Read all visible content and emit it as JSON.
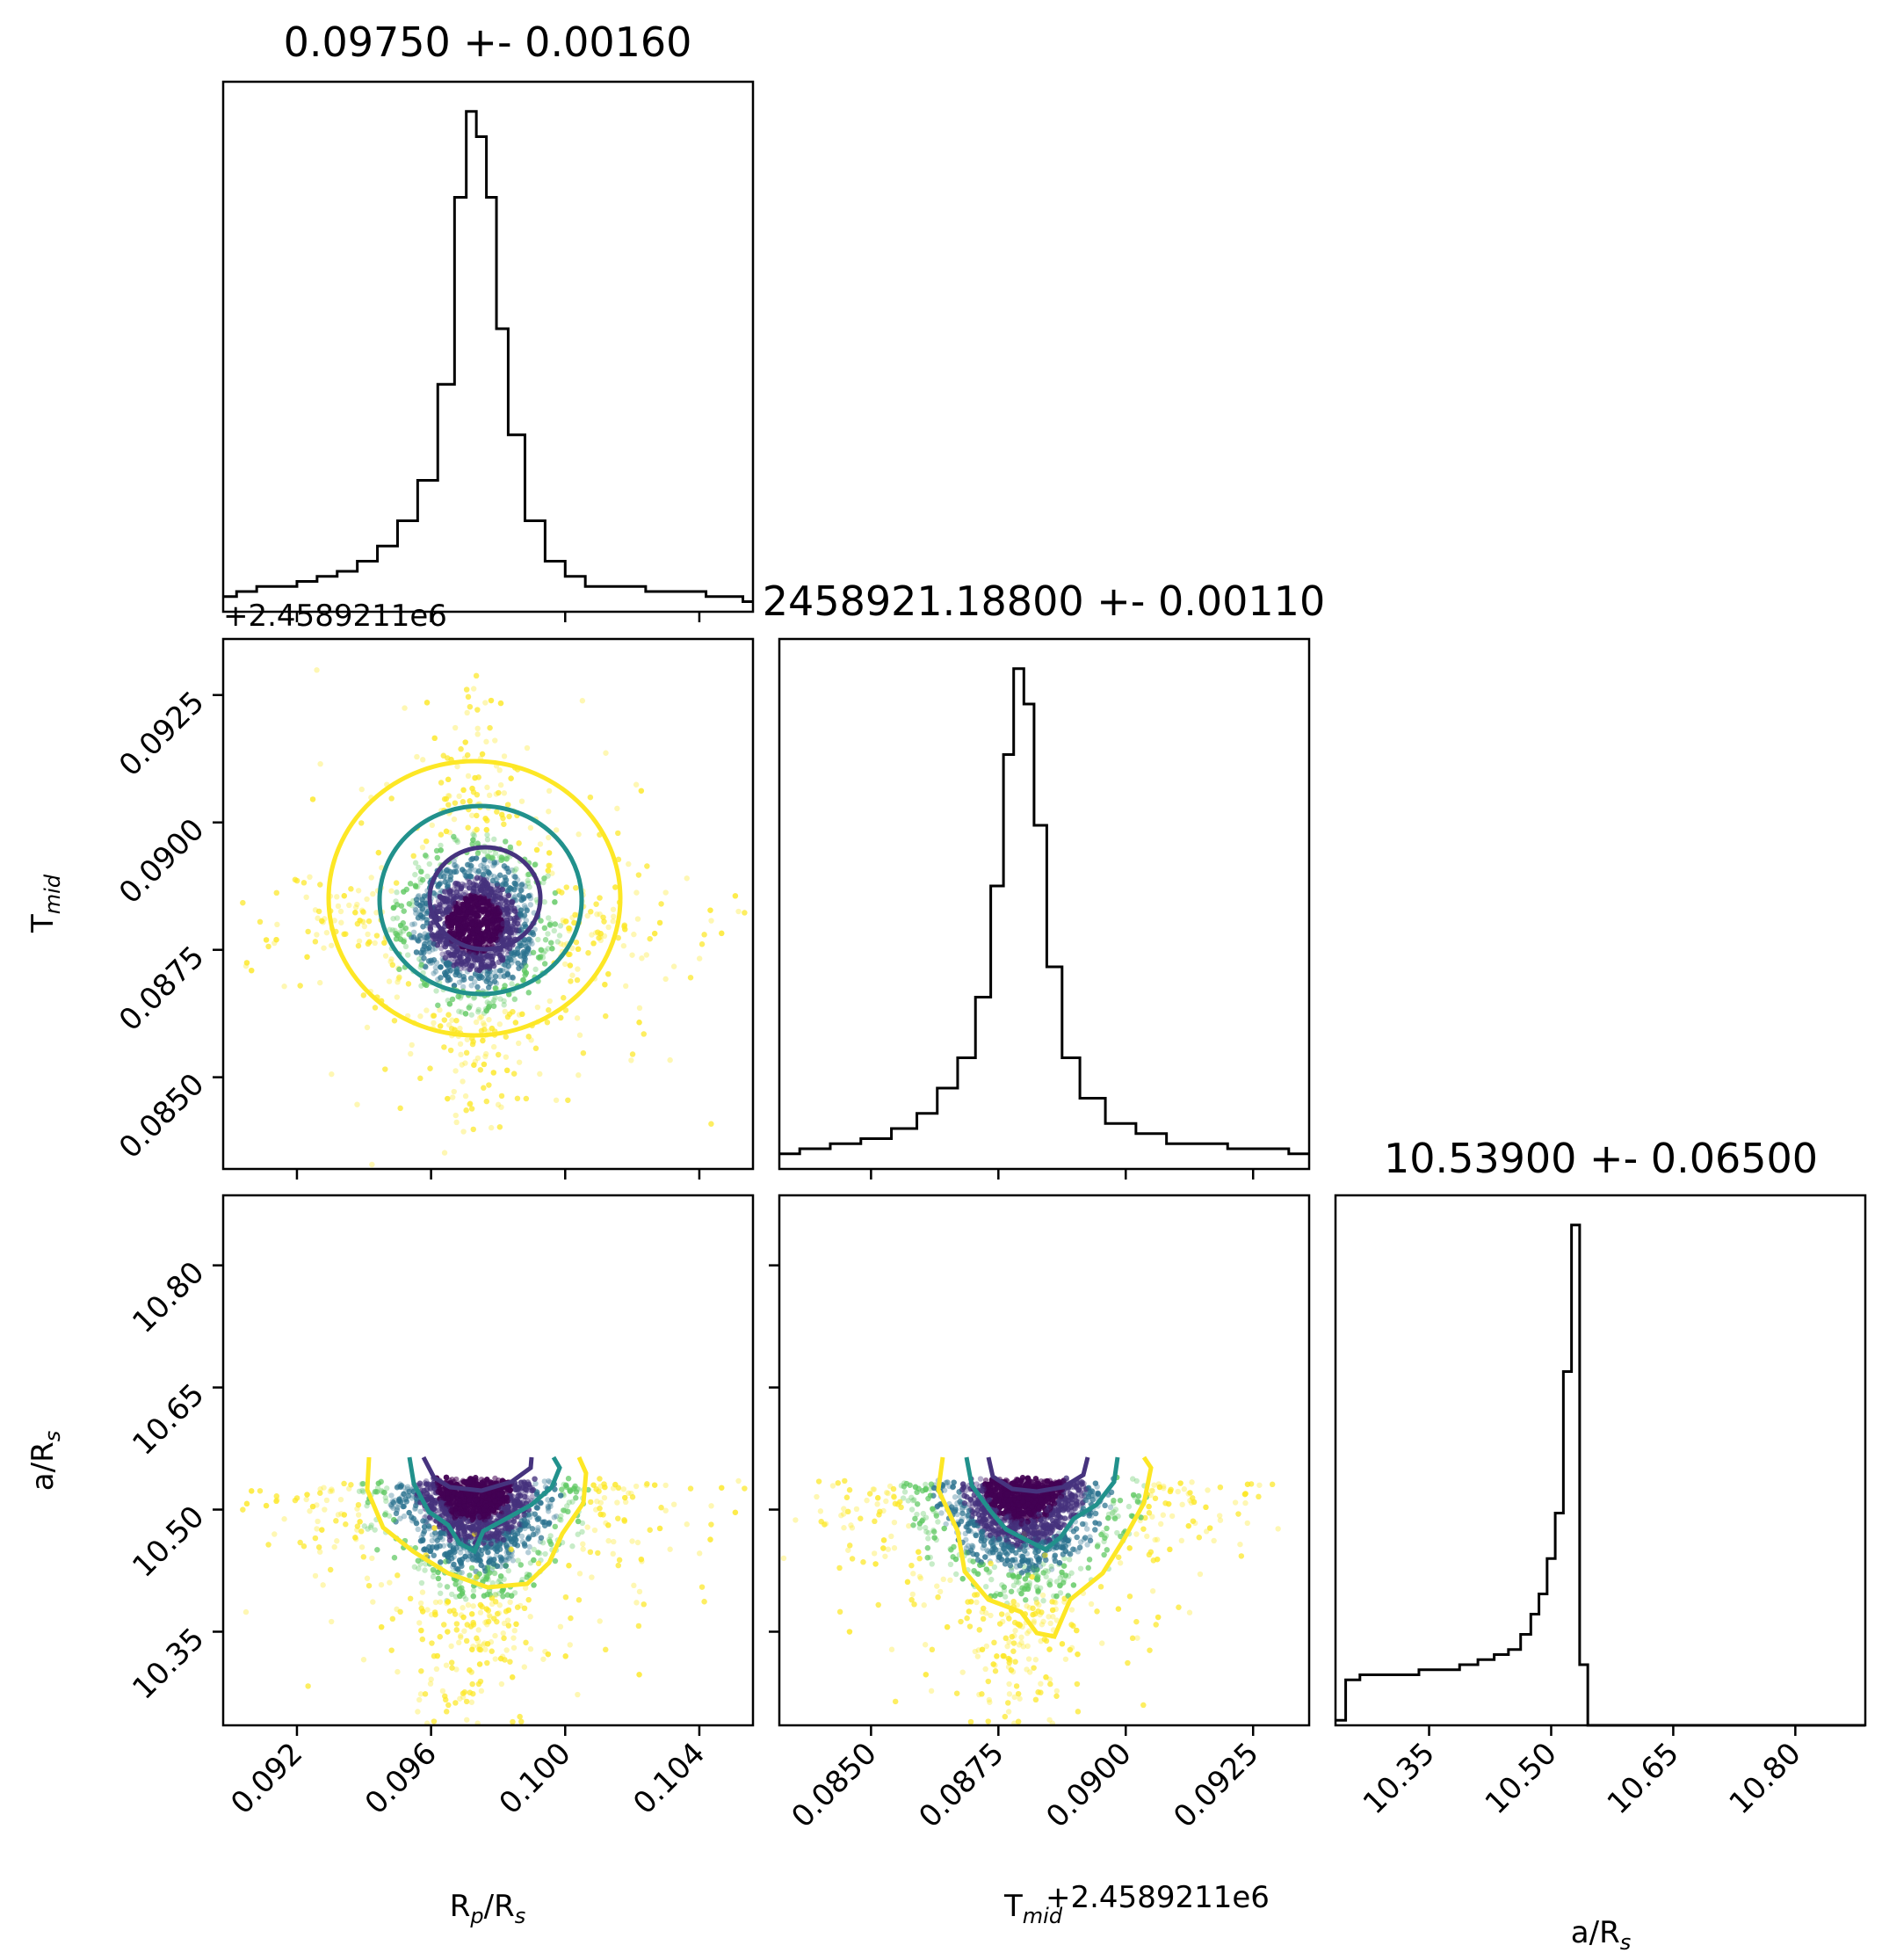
{
  "chart_data": {
    "type": "corner",
    "parameters": [
      "Rp/Rs",
      "Tmid",
      "a/Rs"
    ],
    "titles": [
      "0.09750 +- 0.00160",
      "2458921.18800 +- 0.00110",
      "10.53900 +- 0.06500"
    ],
    "offset_labels": [
      "+2.4589211e6",
      "+2.4589211e6"
    ],
    "axis_labels": {
      "x": [
        "R_p/R_s",
        "T_mid",
        "a/R_s"
      ],
      "y": [
        "",
        "T_mid",
        "a/R_s"
      ]
    },
    "ranges": [
      [
        0.0898,
        0.1056
      ],
      [
        0.0832,
        0.0936
      ],
      [
        10.235,
        10.886
      ]
    ],
    "ticks": {
      "rp": [
        0.092,
        0.096,
        0.1,
        0.104
      ],
      "rp_labels": [
        "0.092",
        "0.096",
        "0.100",
        "0.104"
      ],
      "tmid": [
        0.085,
        0.0875,
        0.09,
        0.0925
      ],
      "tmid_labels": [
        "0.0850",
        "0.0875",
        "0.0900",
        "0.0925"
      ],
      "ars": [
        10.35,
        10.5,
        10.65,
        10.8
      ],
      "ars_labels": [
        "10.35",
        "10.50",
        "10.65",
        "10.80"
      ]
    },
    "histograms": {
      "rp": {
        "centers": [
          0.0899,
          0.0905,
          0.0911,
          0.0917,
          0.0923,
          0.0929,
          0.0935,
          0.0941,
          0.0947,
          0.0953,
          0.0959,
          0.0965,
          0.0969,
          0.0972,
          0.0975,
          0.0978,
          0.0981,
          0.0985,
          0.0991,
          0.0997,
          0.1003,
          0.1009,
          0.1015,
          0.1021,
          0.1027,
          0.1033,
          0.1039,
          0.1045,
          0.1051,
          0.1055
        ],
        "counts": [
          0.03,
          0.04,
          0.05,
          0.05,
          0.06,
          0.07,
          0.08,
          0.1,
          0.13,
          0.18,
          0.26,
          0.45,
          0.82,
          0.99,
          0.94,
          0.82,
          0.56,
          0.35,
          0.18,
          0.1,
          0.07,
          0.05,
          0.05,
          0.05,
          0.04,
          0.04,
          0.04,
          0.03,
          0.03,
          0.02
        ]
      },
      "tmid": {
        "centers": [
          0.0833,
          0.0839,
          0.0845,
          0.0851,
          0.0857,
          0.0861,
          0.0865,
          0.0869,
          0.0872,
          0.0875,
          0.0877,
          0.0879,
          0.0881,
          0.0883,
          0.0886,
          0.0889,
          0.0893,
          0.0899,
          0.0905,
          0.0911,
          0.0917,
          0.0923,
          0.0929,
          0.0935
        ],
        "counts": [
          0.03,
          0.04,
          0.05,
          0.06,
          0.08,
          0.11,
          0.16,
          0.22,
          0.34,
          0.56,
          0.82,
          0.99,
          0.92,
          0.68,
          0.4,
          0.22,
          0.14,
          0.09,
          0.07,
          0.05,
          0.05,
          0.04,
          0.04,
          0.03
        ]
      },
      "ars": {
        "centers": [
          10.24,
          10.255,
          10.275,
          10.3,
          10.325,
          10.35,
          10.375,
          10.4,
          10.42,
          10.44,
          10.455,
          10.47,
          10.48,
          10.49,
          10.5,
          10.51,
          10.52,
          10.53,
          10.54,
          10.55,
          10.6,
          10.7,
          10.8,
          10.88
        ],
        "counts": [
          0.01,
          0.09,
          0.1,
          0.1,
          0.1,
          0.11,
          0.11,
          0.12,
          0.13,
          0.14,
          0.15,
          0.18,
          0.22,
          0.26,
          0.33,
          0.42,
          0.7,
          0.99,
          0.12,
          0.0,
          0.0,
          0.0,
          0.0,
          0.0
        ]
      }
    },
    "scatter": {
      "n_points": 4500,
      "rp": {
        "median": 0.0973,
        "sigma": 0.0016
      },
      "tmid": {
        "median": 0.088,
        "sigma": 0.0011
      },
      "ars": {
        "max": 10.54,
        "min": 10.235
      }
    },
    "contour_levels": [
      "1-sigma",
      "2-sigma",
      "3-sigma"
    ],
    "colors": {
      "histogram": "#000000",
      "sigma1": "#46337e",
      "sigma2": "#21918c",
      "sigma3": "#fde725",
      "core": "#440154",
      "mid": "#2c728e",
      "outer": "#5ec962",
      "far": "#fde725"
    },
    "grid": false,
    "legend": "none"
  }
}
